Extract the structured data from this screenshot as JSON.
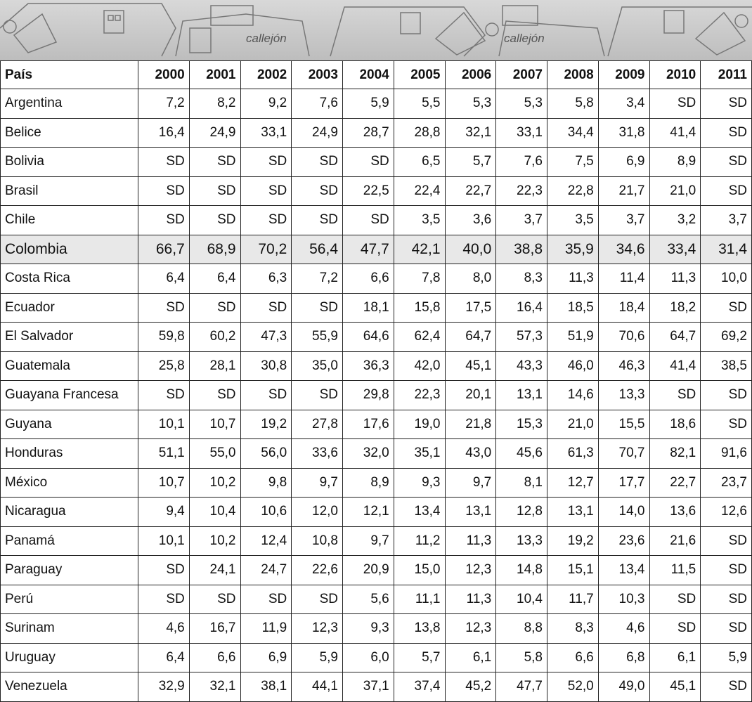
{
  "banner": {
    "texts": [
      "callejón",
      "callejón"
    ]
  },
  "table": {
    "header": [
      "País",
      "2000",
      "2001",
      "2002",
      "2003",
      "2004",
      "2005",
      "2006",
      "2007",
      "2008",
      "2009",
      "2010",
      "2011"
    ],
    "rows": [
      [
        "Argentina",
        "7,2",
        "8,2",
        "9,2",
        "7,6",
        "5,9",
        "5,5",
        "5,3",
        "5,3",
        "5,8",
        "3,4",
        "SD",
        "SD"
      ],
      [
        "Belice",
        "16,4",
        "24,9",
        "33,1",
        "24,9",
        "28,7",
        "28,8",
        "32,1",
        "33,1",
        "34,4",
        "31,8",
        "41,4",
        "SD"
      ],
      [
        "Bolivia",
        "SD",
        "SD",
        "SD",
        "SD",
        "SD",
        "6,5",
        "5,7",
        "7,6",
        "7,5",
        "6,9",
        "8,9",
        "SD"
      ],
      [
        "Brasil",
        "SD",
        "SD",
        "SD",
        "SD",
        "22,5",
        "22,4",
        "22,7",
        "22,3",
        "22,8",
        "21,7",
        "21,0",
        "SD"
      ],
      [
        "Chile",
        "SD",
        "SD",
        "SD",
        "SD",
        "SD",
        "3,5",
        "3,6",
        "3,7",
        "3,5",
        "3,7",
        "3,2",
        "3,7"
      ],
      [
        "Colombia",
        "66,7",
        "68,9",
        "70,2",
        "56,4",
        "47,7",
        "42,1",
        "40,0",
        "38,8",
        "35,9",
        "34,6",
        "33,4",
        "31,4"
      ],
      [
        "Costa Rica",
        "6,4",
        "6,4",
        "6,3",
        "7,2",
        "6,6",
        "7,8",
        "8,0",
        "8,3",
        "11,3",
        "11,4",
        "11,3",
        "10,0"
      ],
      [
        "Ecuador",
        "SD",
        "SD",
        "SD",
        "SD",
        "18,1",
        "15,8",
        "17,5",
        "16,4",
        "18,5",
        "18,4",
        "18,2",
        "SD"
      ],
      [
        "El Salvador",
        "59,8",
        "60,2",
        "47,3",
        "55,9",
        "64,6",
        "62,4",
        "64,7",
        "57,3",
        "51,9",
        "70,6",
        "64,7",
        "69,2"
      ],
      [
        "Guatemala",
        "25,8",
        "28,1",
        "30,8",
        "35,0",
        "36,3",
        "42,0",
        "45,1",
        "43,3",
        "46,0",
        "46,3",
        "41,4",
        "38,5"
      ],
      [
        "Guayana Francesa",
        "SD",
        "SD",
        "SD",
        "SD",
        "29,8",
        "22,3",
        "20,1",
        "13,1",
        "14,6",
        "13,3",
        "SD",
        "SD"
      ],
      [
        "Guyana",
        "10,1",
        "10,7",
        "19,2",
        "27,8",
        "17,6",
        "19,0",
        "21,8",
        "15,3",
        "21,0",
        "15,5",
        "18,6",
        "SD"
      ],
      [
        "Honduras",
        "51,1",
        "55,0",
        "56,0",
        "33,6",
        "32,0",
        "35,1",
        "43,0",
        "45,6",
        "61,3",
        "70,7",
        "82,1",
        "91,6"
      ],
      [
        "México",
        "10,7",
        "10,2",
        "9,8",
        "9,7",
        "8,9",
        "9,3",
        "9,7",
        "8,1",
        "12,7",
        "17,7",
        "22,7",
        "23,7"
      ],
      [
        "Nicaragua",
        "9,4",
        "10,4",
        "10,6",
        "12,0",
        "12,1",
        "13,4",
        "13,1",
        "12,8",
        "13,1",
        "14,0",
        "13,6",
        "12,6"
      ],
      [
        "Panamá",
        "10,1",
        "10,2",
        "12,4",
        "10,8",
        "9,7",
        "11,2",
        "11,3",
        "13,3",
        "19,2",
        "23,6",
        "21,6",
        "SD"
      ],
      [
        "Paraguay",
        "SD",
        "24,1",
        "24,7",
        "22,6",
        "20,9",
        "15,0",
        "12,3",
        "14,8",
        "15,1",
        "13,4",
        "11,5",
        "SD"
      ],
      [
        "Perú",
        "SD",
        "SD",
        "SD",
        "SD",
        "5,6",
        "11,1",
        "11,3",
        "10,4",
        "11,7",
        "10,3",
        "SD",
        "SD"
      ],
      [
        "Surinam",
        "4,6",
        "16,7",
        "11,9",
        "12,3",
        "9,3",
        "13,8",
        "12,3",
        "8,8",
        "8,3",
        "4,6",
        "SD",
        "SD"
      ],
      [
        "Uruguay",
        "6,4",
        "6,6",
        "6,9",
        "5,9",
        "6,0",
        "5,7",
        "6,1",
        "5,8",
        "6,6",
        "6,8",
        "6,1",
        "5,9"
      ],
      [
        "Venezuela",
        "32,9",
        "32,1",
        "38,1",
        "44,1",
        "37,1",
        "37,4",
        "45,2",
        "47,7",
        "52,0",
        "49,0",
        "45,1",
        "SD"
      ]
    ],
    "highlight_row": 5
  }
}
